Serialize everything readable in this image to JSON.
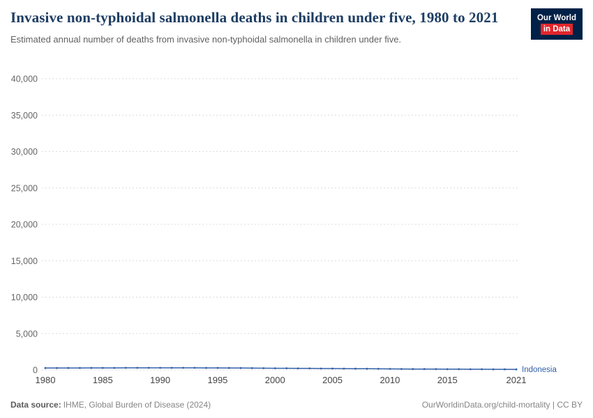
{
  "header": {
    "title": "Invasive non-typhoidal salmonella deaths in children under five, 1980 to 2021",
    "subtitle": "Estimated annual number of deaths from invasive non-typhoidal salmonella in children under five.",
    "logo": {
      "line1": "Our World",
      "line2": "in Data"
    }
  },
  "colors": {
    "title": "#1d3d63",
    "subtitle": "#616161",
    "series": "#3360a9",
    "grid": "#dcdcdc",
    "ytick": "#666666",
    "xtick": "#454545",
    "logo_bg": "#002147",
    "logo_accent": "#e2262c",
    "footer": "#858585"
  },
  "chart_data": {
    "type": "line",
    "title": "Invasive non-typhoidal salmonella deaths in children under five, 1980 to 2021",
    "xlabel": "",
    "ylabel": "",
    "ylim": [
      0,
      40000
    ],
    "yticks": [
      0,
      5000,
      10000,
      15000,
      20000,
      25000,
      30000,
      35000,
      40000
    ],
    "xticks": [
      1980,
      1985,
      1990,
      1995,
      2000,
      2005,
      2010,
      2015,
      2021
    ],
    "grid": "horizontal-dashed",
    "legend_position": "end-of-line-label",
    "x": [
      1980,
      1981,
      1982,
      1983,
      1984,
      1985,
      1986,
      1987,
      1988,
      1989,
      1990,
      1991,
      1992,
      1993,
      1994,
      1995,
      1996,
      1997,
      1998,
      1999,
      2000,
      2001,
      2002,
      2003,
      2004,
      2005,
      2006,
      2007,
      2008,
      2009,
      2010,
      2011,
      2012,
      2013,
      2014,
      2015,
      2016,
      2017,
      2018,
      2019,
      2020,
      2021
    ],
    "series": [
      {
        "name": "Indonesia",
        "color": "#3360a9",
        "values": [
          255,
          260,
          265,
          270,
          274,
          278,
          282,
          285,
          288,
          290,
          291,
          290,
          288,
          284,
          280,
          274,
          268,
          260,
          252,
          243,
          234,
          225,
          215,
          206,
          196,
          187,
          178,
          169,
          160,
          152,
          144,
          136,
          129,
          122,
          115,
          109,
          103,
          97,
          92,
          87,
          82,
          78
        ]
      }
    ]
  },
  "footer": {
    "source_label": "Data source:",
    "source_value": "IHME, Global Burden of Disease (2024)",
    "url": "OurWorldinData.org/child-mortality",
    "license": " | CC BY"
  }
}
